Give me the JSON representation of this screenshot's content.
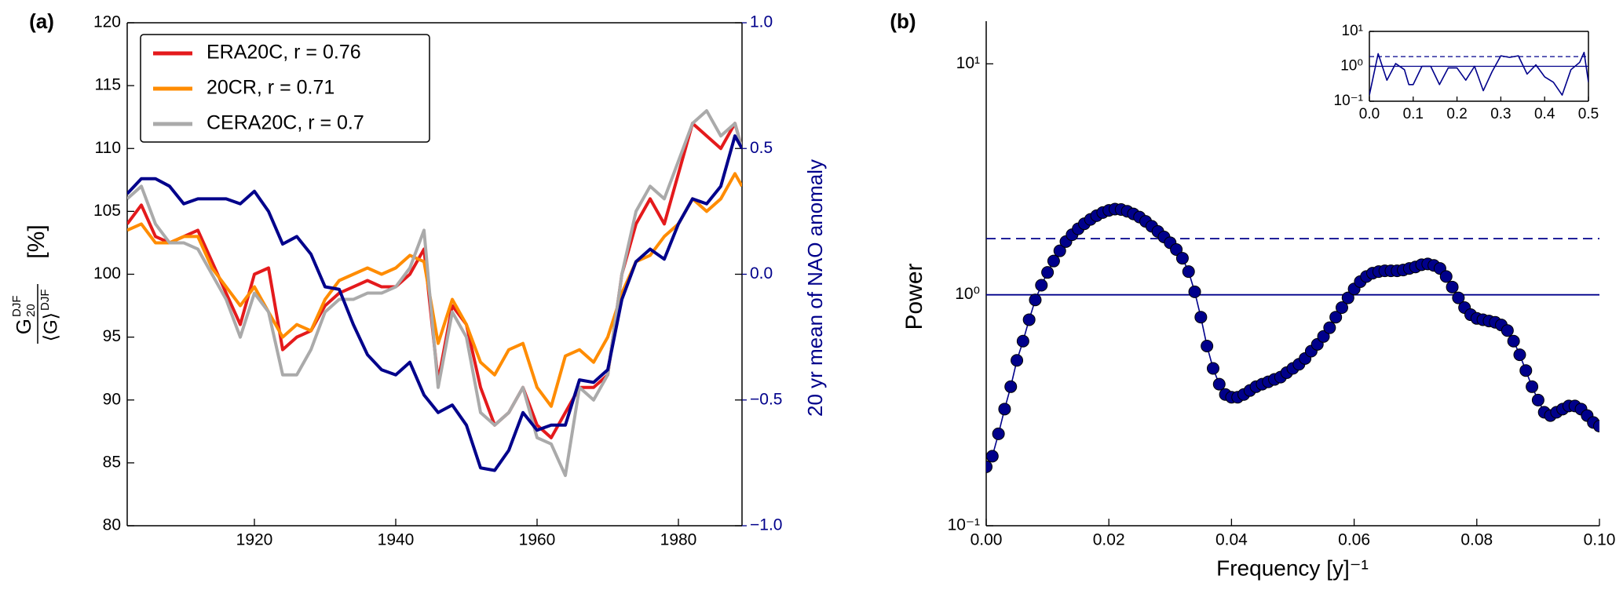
{
  "chart_data": [
    {
      "type": "line",
      "panel_label": "(a)",
      "ylabel": {
        "numerator": "G",
        "numerator_sub": "20",
        "numerator_sup": "DJF",
        "denominator": "⟨G⟩",
        "denominator_sup": "DJF",
        "unit": "[%]"
      },
      "y2label": "20 yr mean of NAO anomaly",
      "x": [
        1902,
        1904,
        1906,
        1908,
        1910,
        1912,
        1914,
        1916,
        1918,
        1920,
        1922,
        1924,
        1926,
        1928,
        1930,
        1932,
        1934,
        1936,
        1938,
        1940,
        1942,
        1944,
        1946,
        1948,
        1950,
        1952,
        1954,
        1956,
        1958,
        1960,
        1962,
        1964,
        1966,
        1968,
        1970,
        1972,
        1974,
        1976,
        1978,
        1980,
        1982,
        1984,
        1986,
        1988,
        1989
      ],
      "xlim": [
        1902,
        1989
      ],
      "xticks": [
        1920,
        1940,
        1960,
        1980
      ],
      "ylim": [
        80,
        120
      ],
      "yticks": [
        80,
        85,
        90,
        95,
        100,
        105,
        110,
        115,
        120
      ],
      "y2lim": [
        -1,
        1
      ],
      "y2ticks": [
        {
          "value": -1,
          "label": "−1.0"
        },
        {
          "value": -0.5,
          "label": "−0.5"
        },
        {
          "value": 0,
          "label": "0.0"
        },
        {
          "value": 0.5,
          "label": "0.5"
        },
        {
          "value": 1,
          "label": "1.0"
        }
      ],
      "spines": [
        "left",
        "bottom",
        "right",
        "top"
      ],
      "legend": "upper left",
      "series": [
        {
          "name": "ERA20C, r = 0.76",
          "color": "#e41a1c",
          "values": [
            104,
            105.5,
            103,
            102.5,
            103,
            103.5,
            101,
            98.5,
            96,
            100,
            100.5,
            94,
            95,
            95.5,
            97.5,
            98.5,
            99,
            99.5,
            99,
            99,
            100,
            102,
            91.5,
            97.5,
            96,
            91,
            88,
            89,
            91,
            88,
            87,
            89,
            91,
            91,
            92,
            100,
            104,
            106,
            104,
            108,
            112,
            111,
            110,
            112,
            110
          ]
        },
        {
          "name": "20CR, r = 0.71",
          "color": "#ff8c00",
          "values": [
            103.5,
            104,
            102.5,
            102.5,
            103,
            103,
            100.5,
            99,
            97.5,
            99,
            97,
            95,
            96,
            95.5,
            98,
            99.5,
            100,
            100.5,
            100,
            100.5,
            101.5,
            101,
            94.5,
            98,
            96,
            93,
            92,
            94,
            94.5,
            91,
            89.5,
            93.5,
            94,
            93,
            95,
            98.5,
            101,
            101.5,
            103,
            104,
            106,
            105,
            106,
            108,
            107
          ]
        },
        {
          "name": "CERA20C, r = 0.7",
          "color": "#aaaaaa",
          "values": [
            106,
            107,
            104,
            102.5,
            102.5,
            102,
            100,
            98,
            95,
            98.5,
            97,
            92,
            92,
            94,
            97,
            98,
            98,
            98.5,
            98.5,
            99,
            100.5,
            103.5,
            91,
            97,
            95,
            89,
            88,
            89,
            91,
            87,
            86.5,
            84,
            91,
            90,
            92,
            100,
            105,
            107,
            106,
            109,
            112,
            113,
            111,
            112,
            110
          ]
        },
        {
          "color": "#00008b",
          "axis": "y2",
          "values": [
            0.32,
            0.38,
            0.38,
            0.35,
            0.28,
            0.3,
            0.3,
            0.3,
            0.28,
            0.33,
            0.25,
            0.12,
            0.15,
            0.08,
            -0.05,
            -0.06,
            -0.2,
            -0.32,
            -0.38,
            -0.4,
            -0.35,
            -0.48,
            -0.55,
            -0.52,
            -0.6,
            -0.77,
            -0.78,
            -0.7,
            -0.55,
            -0.62,
            -0.6,
            -0.6,
            -0.42,
            -0.43,
            -0.38,
            -0.1,
            0.05,
            0.1,
            0.06,
            0.2,
            0.3,
            0.28,
            0.35,
            0.55,
            0.5
          ]
        }
      ]
    },
    {
      "type": "scatter",
      "connect": true,
      "panel_label": "(b)",
      "xlabel": "Frequency [y]⁻¹",
      "ylabel": "Power",
      "log_y": true,
      "x": [
        0,
        0.001,
        0.002,
        0.003,
        0.004,
        0.005,
        0.006,
        0.007,
        0.008,
        0.009,
        0.01,
        0.011,
        0.012,
        0.013,
        0.014,
        0.015,
        0.016,
        0.017,
        0.018,
        0.019,
        0.02,
        0.021,
        0.022,
        0.023,
        0.024,
        0.025,
        0.026,
        0.027,
        0.028,
        0.029,
        0.03,
        0.031,
        0.032,
        0.033,
        0.034,
        0.035,
        0.036,
        0.037,
        0.038,
        0.039,
        0.04,
        0.041,
        0.042,
        0.043,
        0.044,
        0.045,
        0.046,
        0.047,
        0.048,
        0.049,
        0.05,
        0.051,
        0.052,
        0.053,
        0.054,
        0.055,
        0.056,
        0.057,
        0.058,
        0.059,
        0.06,
        0.061,
        0.062,
        0.063,
        0.064,
        0.065,
        0.066,
        0.067,
        0.068,
        0.069,
        0.07,
        0.071,
        0.072,
        0.073,
        0.074,
        0.075,
        0.076,
        0.077,
        0.078,
        0.079,
        0.08,
        0.081,
        0.082,
        0.083,
        0.084,
        0.085,
        0.086,
        0.087,
        0.088,
        0.089,
        0.09,
        0.091,
        0.092,
        0.093,
        0.094,
        0.095,
        0.096,
        0.097,
        0.098,
        0.099,
        0.1
      ],
      "xlim": [
        0,
        0.1
      ],
      "xticks": [
        {
          "value": 0,
          "label": "0.00"
        },
        {
          "value": 0.02,
          "label": "0.02"
        },
        {
          "value": 0.04,
          "label": "0.04"
        },
        {
          "value": 0.06,
          "label": "0.06"
        },
        {
          "value": 0.08,
          "label": "0.08"
        },
        {
          "value": 0.1,
          "label": "0.10"
        }
      ],
      "ylim": [
        0.1,
        15.3
      ],
      "yticks": [
        {
          "value": 0.1,
          "label": "10⁻¹"
        },
        {
          "value": 1,
          "label": "10⁰"
        },
        {
          "value": 10,
          "label": "10¹"
        }
      ],
      "spines": [
        "left",
        "bottom"
      ],
      "reference_lines": [
        {
          "value": 1,
          "style": "solid"
        },
        {
          "value": 1.75,
          "style": "dashed"
        }
      ],
      "series": [
        {
          "color": "#00008b",
          "values": [
            0.18,
            0.2,
            0.25,
            0.32,
            0.4,
            0.52,
            0.63,
            0.78,
            0.95,
            1.1,
            1.25,
            1.4,
            1.55,
            1.7,
            1.82,
            1.93,
            2.03,
            2.12,
            2.2,
            2.27,
            2.32,
            2.35,
            2.34,
            2.3,
            2.24,
            2.17,
            2.08,
            1.98,
            1.88,
            1.78,
            1.68,
            1.57,
            1.44,
            1.26,
            1.03,
            0.8,
            0.6,
            0.48,
            0.41,
            0.37,
            0.36,
            0.36,
            0.37,
            0.385,
            0.4,
            0.41,
            0.42,
            0.43,
            0.44,
            0.46,
            0.48,
            0.5,
            0.53,
            0.57,
            0.61,
            0.66,
            0.72,
            0.8,
            0.88,
            0.97,
            1.06,
            1.14,
            1.2,
            1.24,
            1.26,
            1.27,
            1.27,
            1.27,
            1.28,
            1.3,
            1.32,
            1.35,
            1.36,
            1.34,
            1.3,
            1.2,
            1.08,
            0.97,
            0.88,
            0.82,
            0.79,
            0.78,
            0.77,
            0.76,
            0.74,
            0.7,
            0.63,
            0.55,
            0.47,
            0.4,
            0.35,
            0.31,
            0.3,
            0.31,
            0.32,
            0.33,
            0.33,
            0.32,
            0.3,
            0.28,
            0.27
          ]
        }
      ]
    },
    {
      "type": "line",
      "log_y": true,
      "x": [
        0,
        0.02,
        0.04,
        0.06,
        0.08,
        0.09,
        0.1,
        0.12,
        0.14,
        0.16,
        0.18,
        0.2,
        0.22,
        0.24,
        0.26,
        0.28,
        0.3,
        0.32,
        0.34,
        0.36,
        0.38,
        0.4,
        0.42,
        0.44,
        0.46,
        0.48,
        0.49,
        0.5
      ],
      "xlim": [
        0,
        0.5
      ],
      "xticks": [
        {
          "value": 0,
          "label": "0.0"
        },
        0.1,
        0.2,
        0.3,
        0.4,
        0.5
      ],
      "ylim": [
        0.1,
        10
      ],
      "yticks": [
        {
          "value": 0.1,
          "label": "10⁻¹"
        },
        {
          "value": 1,
          "label": "10⁰"
        },
        {
          "value": 10,
          "label": "10¹"
        }
      ],
      "spines": [
        "left",
        "bottom",
        "right",
        "top"
      ],
      "reference_lines": [
        {
          "value": 1,
          "style": "solid"
        },
        {
          "value": 1.9,
          "style": "dashed"
        }
      ],
      "series": [
        {
          "color": "#00008b",
          "values": [
            0.15,
            2.3,
            0.4,
            1.2,
            0.8,
            0.3,
            0.3,
            1.0,
            1.0,
            0.3,
            0.9,
            0.9,
            0.4,
            1.0,
            0.2,
            0.7,
            2.0,
            1.8,
            2.0,
            0.6,
            1.1,
            0.5,
            0.35,
            0.15,
            0.8,
            1.3,
            2.5,
            0.35
          ]
        }
      ]
    }
  ]
}
